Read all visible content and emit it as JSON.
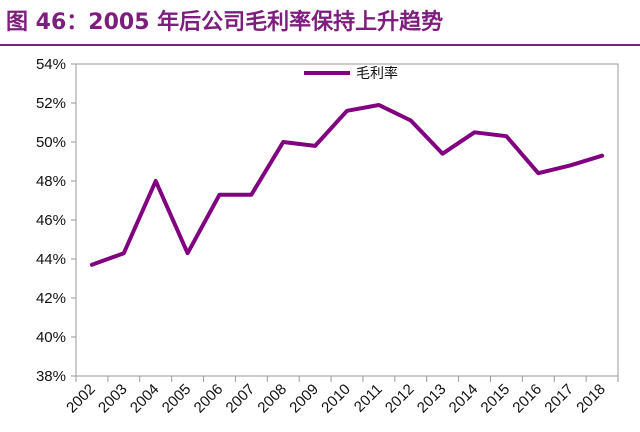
{
  "title": "图 46：2005 年后公司毛利率保持上升趋势",
  "colors": {
    "title": "#7d1d7d",
    "series": "#800080",
    "axis": "#999999"
  },
  "chart_data": {
    "type": "line",
    "title": "",
    "xlabel": "",
    "ylabel": "",
    "x": [
      "2002",
      "2003",
      "2004",
      "2005",
      "2006",
      "2007",
      "2008",
      "2009",
      "2010",
      "2011",
      "2012",
      "2013",
      "2014",
      "2015",
      "2016",
      "2017",
      "2018"
    ],
    "series": [
      {
        "name": "毛利率",
        "values": [
          43.7,
          44.3,
          48.0,
          44.3,
          47.3,
          47.3,
          50.0,
          49.8,
          51.6,
          51.9,
          51.1,
          49.4,
          50.5,
          50.3,
          48.4,
          48.8,
          49.3
        ]
      }
    ],
    "ylim": [
      38,
      54
    ],
    "yticks": [
      "38%",
      "40%",
      "42%",
      "44%",
      "46%",
      "48%",
      "50%",
      "52%",
      "54%"
    ],
    "legend": "top-center",
    "grid": false
  }
}
